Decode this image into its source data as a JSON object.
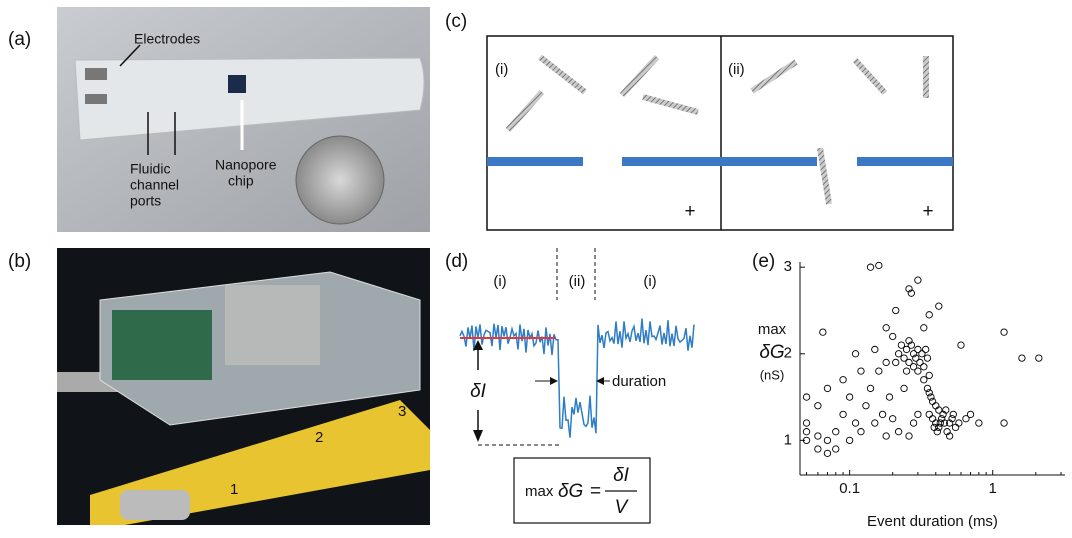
{
  "panel_a": {
    "label": "(a)",
    "electrodes": "Electrodes",
    "ports": [
      "Fluidic",
      "channel",
      "ports"
    ],
    "chip": [
      "Nanopore",
      "chip"
    ]
  },
  "panel_b": {
    "label": "(b)",
    "ruler_marks": [
      "1",
      "2",
      "3"
    ]
  },
  "panel_c": {
    "label": "(c)",
    "left": {
      "label": "(i)",
      "sign": "+"
    },
    "right": {
      "label": "(ii)",
      "sign": "+"
    }
  },
  "panel_d": {
    "label": "(d)",
    "regions": [
      "(i)",
      "(ii)",
      "(i)"
    ],
    "delta_i": "δI",
    "duration": "duration",
    "formula": {
      "max": "max",
      "dg": "δG",
      "eq": "=",
      "num": "δI",
      "den": "V"
    }
  },
  "chart_data": {
    "type": "scatter",
    "label": "(e)",
    "ylabel": [
      "max",
      "δG",
      "(nS)"
    ],
    "xlabel": "Event duration (ms)",
    "log_x": true,
    "color": "#000000",
    "x": [
      0.22,
      0.24,
      0.25,
      0.26,
      0.27,
      0.28,
      0.29,
      0.3,
      0.31,
      0.32,
      0.33,
      0.34,
      0.26,
      0.23,
      0.35,
      0.3,
      0.28,
      0.25,
      0.21,
      0.36,
      0.33,
      0.35,
      0.37,
      0.38,
      0.4,
      0.36,
      0.42,
      0.38,
      0.4,
      0.42,
      0.44,
      0.46,
      0.48,
      0.5,
      0.52,
      0.45,
      0.41,
      0.55,
      0.47,
      0.39,
      0.43,
      0.58,
      0.5,
      0.36,
      0.53,
      0.14,
      0.16,
      0.3,
      0.26,
      0.27,
      0.42,
      0.21,
      0.18,
      0.36,
      0.065,
      1.2,
      1.6,
      2.1,
      0.6,
      0.2,
      0.33,
      0.05,
      0.05,
      0.05,
      0.05,
      0.06,
      0.06,
      0.07,
      0.07,
      0.08,
      0.08,
      0.09,
      0.1,
      0.1,
      0.11,
      0.12,
      0.13,
      0.14,
      0.15,
      0.16,
      0.17,
      0.18,
      0.19,
      0.2,
      0.22,
      0.24,
      0.12,
      0.09,
      0.07,
      0.11,
      0.28,
      0.3,
      0.26,
      0.65,
      0.7,
      0.8,
      1.2,
      0.06,
      0.15,
      0.18
    ],
    "y": [
      2.0,
      1.95,
      2.05,
      1.9,
      2.1,
      2.0,
      1.95,
      2.05,
      1.9,
      2.0,
      1.85,
      2.05,
      2.15,
      2.1,
      1.95,
      1.8,
      1.85,
      1.8,
      1.9,
      1.75,
      1.7,
      1.6,
      1.5,
      1.45,
      1.4,
      1.55,
      1.35,
      1.25,
      1.2,
      1.15,
      1.25,
      1.2,
      1.1,
      1.2,
      1.25,
      1.3,
      1.1,
      1.15,
      1.35,
      1.15,
      1.2,
      1.2,
      1.05,
      1.3,
      1.3,
      3.0,
      3.02,
      2.85,
      2.75,
      2.7,
      2.55,
      2.5,
      2.3,
      2.45,
      2.25,
      2.25,
      1.95,
      1.95,
      2.1,
      2.2,
      2.3,
      1.5,
      1.2,
      1.1,
      1.0,
      0.9,
      1.05,
      0.85,
      1.0,
      1.1,
      0.9,
      1.3,
      1.0,
      1.5,
      1.2,
      1.1,
      1.4,
      1.6,
      1.2,
      1.8,
      1.3,
      1.05,
      1.5,
      1.25,
      1.1,
      1.6,
      1.8,
      1.7,
      1.6,
      2.0,
      1.2,
      1.3,
      1.05,
      1.25,
      1.3,
      1.2,
      1.2,
      1.4,
      2.05,
      1.9
    ],
    "xlim": [
      0.045,
      3.2
    ],
    "xticks": [
      0.1,
      1
    ],
    "ylim": [
      0.6,
      3.06
    ],
    "yticks": [
      1,
      2,
      3
    ]
  }
}
